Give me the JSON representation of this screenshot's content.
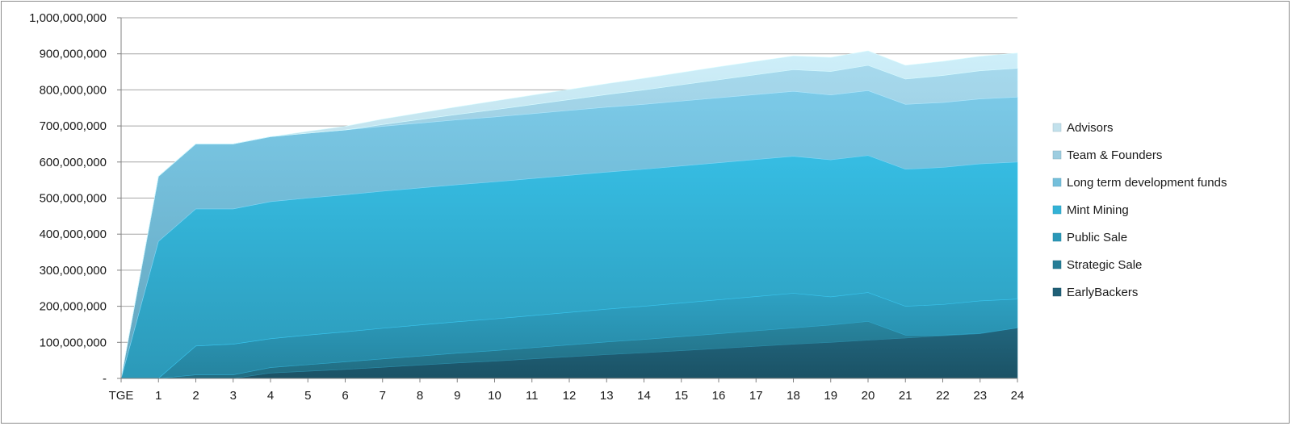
{
  "chart_data": {
    "type": "area",
    "stacked": true,
    "categories": [
      "TGE",
      "1",
      "2",
      "3",
      "4",
      "5",
      "6",
      "7",
      "8",
      "9",
      "10",
      "11",
      "12",
      "13",
      "14",
      "15",
      "16",
      "17",
      "18",
      "19",
      "20",
      "21",
      "22",
      "23",
      "24"
    ],
    "ylim": [
      0,
      1000000000
    ],
    "y_ticks": [
      0,
      100000000,
      200000000,
      300000000,
      400000000,
      500000000,
      600000000,
      700000000,
      800000000,
      900000000,
      1000000000
    ],
    "y_tick_labels": [
      "-",
      "100,000,000",
      "200,000,000",
      "300,000,000",
      "400,000,000",
      "500,000,000",
      "600,000,000",
      "700,000,000",
      "800,000,000",
      "900,000,000",
      "1,000,000,000"
    ],
    "grid": true,
    "legend_position": "right",
    "series": [
      {
        "name": "EarlyBackers",
        "color": "#1f5f76",
        "values": [
          0,
          0,
          0,
          0,
          15000000,
          20000000,
          25000000,
          31000000,
          37000000,
          43000000,
          48000000,
          54000000,
          60000000,
          66000000,
          71000000,
          77000000,
          83000000,
          89000000,
          95000000,
          100000000,
          106000000,
          112000000,
          118000000,
          124000000,
          140000000
        ]
      },
      {
        "name": "Strategic Sale",
        "color": "#267d96",
        "values": [
          0,
          0,
          10000000,
          10000000,
          15000000,
          18000000,
          21000000,
          23000000,
          25000000,
          27000000,
          29000000,
          31000000,
          33000000,
          35000000,
          37000000,
          39000000,
          41000000,
          43000000,
          45000000,
          48000000,
          52000000,
          8000000,
          2000000,
          1000000,
          0
        ]
      },
      {
        "name": "Public Sale",
        "color": "#2b98b8",
        "values": [
          0,
          0,
          80000000,
          85000000,
          80000000,
          82000000,
          83000000,
          85000000,
          86000000,
          87000000,
          88000000,
          89000000,
          90000000,
          91000000,
          92000000,
          93000000,
          94000000,
          95000000,
          96000000,
          78000000,
          80000000,
          80000000,
          85000000,
          90000000,
          80000000
        ]
      },
      {
        "name": "Mint Mining",
        "color": "#33b2d6",
        "values": [
          0,
          380000000,
          380000000,
          375000000,
          380000000,
          380000000,
          380000000,
          380000000,
          380000000,
          380000000,
          380000000,
          380000000,
          380000000,
          380000000,
          380000000,
          380000000,
          380000000,
          380000000,
          380000000,
          380000000,
          380000000,
          380000000,
          380000000,
          380000000,
          380000000
        ]
      },
      {
        "name": "Long term development funds",
        "color": "#74bfdb",
        "values": [
          0,
          180000000,
          180000000,
          180000000,
          180000000,
          180000000,
          180000000,
          180000000,
          180000000,
          180000000,
          180000000,
          180000000,
          180000000,
          180000000,
          180000000,
          180000000,
          180000000,
          180000000,
          180000000,
          180000000,
          180000000,
          180000000,
          180000000,
          180000000,
          180000000
        ]
      },
      {
        "name": "Team & Founders",
        "color": "#9dcde0",
        "values": [
          0,
          0,
          0,
          0,
          0,
          0,
          0,
          5000000,
          10000000,
          15000000,
          20000000,
          25000000,
          30000000,
          35000000,
          40000000,
          45000000,
          50000000,
          55000000,
          60000000,
          65000000,
          70000000,
          70000000,
          75000000,
          78000000,
          80000000
        ]
      },
      {
        "name": "Advisors",
        "color": "#c2e1ec",
        "values": [
          0,
          0,
          0,
          0,
          0,
          5000000,
          10000000,
          15000000,
          18000000,
          21000000,
          24000000,
          26000000,
          28000000,
          30000000,
          32000000,
          34000000,
          36000000,
          37000000,
          38000000,
          39000000,
          40000000,
          38000000,
          39000000,
          40000000,
          42000000
        ]
      }
    ]
  }
}
